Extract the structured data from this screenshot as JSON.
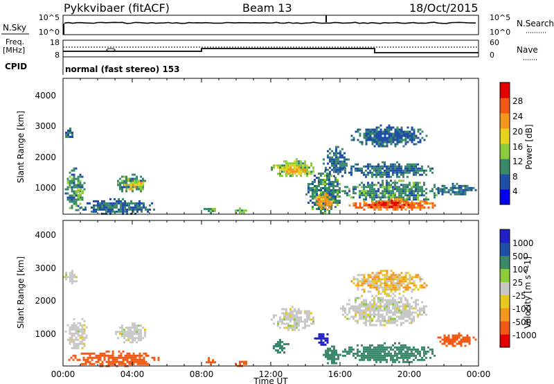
{
  "header": {
    "title": "Pykkvibaer (fitACF)",
    "beam": "Beam 13",
    "date": "18/Oct/2015"
  },
  "top_panels": {
    "nsky_label": "N.Sky",
    "nsky_ticks": [
      "10^5",
      "10^0"
    ],
    "nsearch_label": "N.Search",
    "nsearch_ticks": [
      "10^5",
      "10^0"
    ],
    "freq_label_line1": "Freq.",
    "freq_label_line2": "[MHz]",
    "freq_ticks": [
      "18",
      "8"
    ],
    "nave_label": "Nave",
    "nave_ticks": [
      "60",
      "0"
    ],
    "cpid_label": "CPID",
    "cpid_text": "normal (fast stereo) 153"
  },
  "colors": {
    "power_scale": [
      "#0000ee",
      "#1f4ea6",
      "#3a8a6a",
      "#8ccc3c",
      "#e8d21e",
      "#f5961e",
      "#f05a14",
      "#e40000"
    ],
    "velocity_scale": [
      "#e40000",
      "#f05a14",
      "#f5961e",
      "#e6c81e",
      "#c8c8c8",
      "#8ccc3c",
      "#3a8a6a",
      "#1f4ea6",
      "#2020c8"
    ]
  },
  "chart_data": [
    {
      "type": "heatmap",
      "quantity": "Power",
      "xlabel": "Time UT",
      "ylabel": "Slant Range [km]",
      "x_ticks": [
        "00:00",
        "04:00",
        "08:00",
        "12:00",
        "16:00",
        "20:00",
        "00:00"
      ],
      "xlim_hours": [
        0,
        24
      ],
      "y_ticks": [
        "1000",
        "2000",
        "3000",
        "4000"
      ],
      "ylim_km": [
        180,
        4600
      ],
      "colorbar_label": "Power [dB]",
      "colorbar_ticks": [
        "4",
        "8",
        "12",
        "16",
        "20",
        "24",
        "28"
      ],
      "colorbar_range": [
        0,
        30
      ],
      "regions": [
        {
          "t": [
            0.0,
            0.6
          ],
          "r": [
            2700,
            3000
          ],
          "value": 8
        },
        {
          "t": [
            0.1,
            1.2
          ],
          "r": [
            300,
            1700
          ],
          "value": 10
        },
        {
          "t": [
            0.6,
            1.1
          ],
          "r": [
            700,
            1100
          ],
          "value": 16
        },
        {
          "t": [
            1.0,
            5.3
          ],
          "r": [
            200,
            700
          ],
          "value": 8
        },
        {
          "t": [
            3.0,
            4.8
          ],
          "r": [
            900,
            1500
          ],
          "value": 10
        },
        {
          "t": [
            3.5,
            4.7
          ],
          "r": [
            1000,
            1300
          ],
          "value": 18
        },
        {
          "t": [
            8.0,
            8.8
          ],
          "r": [
            200,
            450
          ],
          "value": 12
        },
        {
          "t": [
            9.8,
            10.6
          ],
          "r": [
            200,
            400
          ],
          "value": 14
        },
        {
          "t": [
            12.0,
            14.5
          ],
          "r": [
            1400,
            2000
          ],
          "value": 14
        },
        {
          "t": [
            12.5,
            14.0
          ],
          "r": [
            1500,
            1800
          ],
          "value": 20
        },
        {
          "t": [
            14.0,
            16.0
          ],
          "r": [
            200,
            1600
          ],
          "value": 10
        },
        {
          "t": [
            14.5,
            15.5
          ],
          "r": [
            300,
            900
          ],
          "value": 22
        },
        {
          "t": [
            15.0,
            16.5
          ],
          "r": [
            1400,
            2400
          ],
          "value": 8
        },
        {
          "t": [
            16.0,
            21.5
          ],
          "r": [
            1400,
            1900
          ],
          "value": 8
        },
        {
          "t": [
            16.5,
            21.0
          ],
          "r": [
            2400,
            3100
          ],
          "value": 7
        },
        {
          "t": [
            16.0,
            22.0
          ],
          "r": [
            600,
            1300
          ],
          "value": 10
        },
        {
          "t": [
            16.5,
            21.5
          ],
          "r": [
            300,
            700
          ],
          "value": 24
        },
        {
          "t": [
            17.5,
            20.0
          ],
          "r": [
            400,
            650
          ],
          "value": 28
        },
        {
          "t": [
            21.5,
            23.8
          ],
          "r": [
            800,
            1200
          ],
          "value": 8
        }
      ]
    },
    {
      "type": "heatmap",
      "quantity": "Velocity",
      "xlabel": "Time UT",
      "ylabel": "Slant Range [km]",
      "x_ticks": [
        "00:00",
        "04:00",
        "08:00",
        "12:00",
        "16:00",
        "20:00",
        "00:00"
      ],
      "xlim_hours": [
        0,
        24
      ],
      "y_ticks": [
        "1000",
        "2000",
        "3000",
        "4000"
      ],
      "ylim_km": [
        180,
        4600
      ],
      "colorbar_label": "Velocity [m s^-1]",
      "colorbar_ticks": [
        "1000",
        "500",
        "100",
        "25",
        "-25",
        "-100",
        "-500",
        "-1000"
      ],
      "regions": [
        {
          "t": [
            0.0,
            0.8
          ],
          "r": [
            2700,
            3100
          ],
          "value": 0
        },
        {
          "t": [
            0.1,
            1.4
          ],
          "r": [
            700,
            1700
          ],
          "value": 0
        },
        {
          "t": [
            0.3,
            5.5
          ],
          "r": [
            200,
            650
          ],
          "value": -200
        },
        {
          "t": [
            3.0,
            4.8
          ],
          "r": [
            900,
            1500
          ],
          "value": 0
        },
        {
          "t": [
            8.0,
            8.8
          ],
          "r": [
            250,
            450
          ],
          "value": -200
        },
        {
          "t": [
            9.8,
            10.6
          ],
          "r": [
            200,
            400
          ],
          "value": -150
        },
        {
          "t": [
            12.0,
            14.5
          ],
          "r": [
            1300,
            2000
          ],
          "value": 0
        },
        {
          "t": [
            12.0,
            13.0
          ],
          "r": [
            600,
            1000
          ],
          "value": 200
        },
        {
          "t": [
            14.5,
            15.3
          ],
          "r": [
            800,
            1300
          ],
          "value": 1000
        },
        {
          "t": [
            15.0,
            16.0
          ],
          "r": [
            250,
            800
          ],
          "value": 400
        },
        {
          "t": [
            16.0,
            21.0
          ],
          "r": [
            1400,
            2400
          ],
          "value": 0
        },
        {
          "t": [
            16.5,
            21.0
          ],
          "r": [
            2400,
            3100
          ],
          "value": -40
        },
        {
          "t": [
            16.0,
            21.5
          ],
          "r": [
            300,
            900
          ],
          "value": 200
        },
        {
          "t": [
            21.5,
            23.8
          ],
          "r": [
            800,
            1200
          ],
          "value": -200
        }
      ]
    }
  ]
}
